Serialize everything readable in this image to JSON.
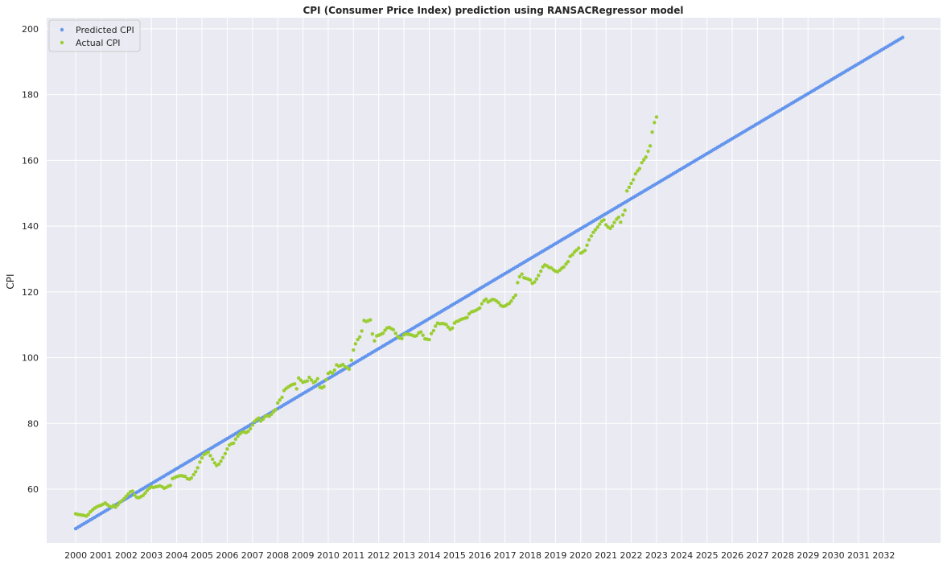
{
  "chart_data": {
    "type": "scatter",
    "title": "CPI (Consumer Price Index) prediction using RANSACRegressor model",
    "xlabel": "",
    "ylabel": "CPI",
    "xlim": [
      1998.85,
      2034.25
    ],
    "ylim": [
      43.6,
      203.4
    ],
    "x_ticks": [
      "2000",
      "2001",
      "2002",
      "2003",
      "2004",
      "2005",
      "2006",
      "2007",
      "2008",
      "2009",
      "2010",
      "2011",
      "2012",
      "2013",
      "2014",
      "2015",
      "2016",
      "2017",
      "2018",
      "2019",
      "2020",
      "2021",
      "2022",
      "2023",
      "2024",
      "2025",
      "2026",
      "2027",
      "2028",
      "2029",
      "2030",
      "2031",
      "2032"
    ],
    "y_ticks": [
      60,
      80,
      100,
      120,
      140,
      160,
      180,
      200
    ],
    "grid": true,
    "legend_position": "top-left",
    "background": "#eaeaf2",
    "series": [
      {
        "name": "Predicted CPI",
        "color": "#6495ed",
        "kind": "linear",
        "x_start": 2000.0,
        "x_end": 2032.75,
        "y_start": 48.0,
        "y_end": 197.4,
        "step_months": 1
      },
      {
        "name": "Actual CPI",
        "color": "#9acd32",
        "kind": "points",
        "points": [
          [
            2000.0,
            52.5
          ],
          [
            2000.08,
            52.3
          ],
          [
            2000.17,
            52.2
          ],
          [
            2000.25,
            52.1
          ],
          [
            2000.33,
            52.0
          ],
          [
            2000.42,
            51.8
          ],
          [
            2000.5,
            52.3
          ],
          [
            2000.58,
            53.1
          ],
          [
            2000.67,
            53.7
          ],
          [
            2000.75,
            54.2
          ],
          [
            2000.83,
            54.6
          ],
          [
            2000.92,
            54.9
          ],
          [
            2001.0,
            55.1
          ],
          [
            2001.08,
            55.4
          ],
          [
            2001.17,
            55.8
          ],
          [
            2001.25,
            55.3
          ],
          [
            2001.33,
            54.8
          ],
          [
            2001.42,
            54.6
          ],
          [
            2001.5,
            55.1
          ],
          [
            2001.58,
            54.5
          ],
          [
            2001.67,
            55.2
          ],
          [
            2001.75,
            56.0
          ],
          [
            2001.83,
            56.5
          ],
          [
            2001.92,
            57.1
          ],
          [
            2002.0,
            57.8
          ],
          [
            2002.08,
            58.5
          ],
          [
            2002.17,
            59.2
          ],
          [
            2002.25,
            59.4
          ],
          [
            2002.33,
            58.2
          ],
          [
            2002.42,
            57.5
          ],
          [
            2002.5,
            57.4
          ],
          [
            2002.58,
            57.7
          ],
          [
            2002.67,
            58.1
          ],
          [
            2002.75,
            58.8
          ],
          [
            2002.83,
            59.6
          ],
          [
            2002.92,
            60.3
          ],
          [
            2003.0,
            60.7
          ],
          [
            2003.08,
            60.5
          ],
          [
            2003.17,
            60.7
          ],
          [
            2003.25,
            60.8
          ],
          [
            2003.33,
            61.0
          ],
          [
            2003.42,
            60.7
          ],
          [
            2003.5,
            60.3
          ],
          [
            2003.58,
            60.5
          ],
          [
            2003.67,
            60.9
          ],
          [
            2003.75,
            61.1
          ],
          [
            2003.83,
            63.2
          ],
          [
            2003.92,
            63.5
          ],
          [
            2004.0,
            63.8
          ],
          [
            2004.08,
            64.0
          ],
          [
            2004.17,
            64.1
          ],
          [
            2004.25,
            64.0
          ],
          [
            2004.33,
            63.9
          ],
          [
            2004.42,
            63.2
          ],
          [
            2004.5,
            63.0
          ],
          [
            2004.58,
            63.4
          ],
          [
            2004.67,
            64.4
          ],
          [
            2004.75,
            65.3
          ],
          [
            2004.83,
            66.5
          ],
          [
            2004.92,
            68.2
          ],
          [
            2005.0,
            69.5
          ],
          [
            2005.08,
            70.5
          ],
          [
            2005.17,
            70.9
          ],
          [
            2005.25,
            71.3
          ],
          [
            2005.33,
            70.2
          ],
          [
            2005.42,
            69.1
          ],
          [
            2005.5,
            68.0
          ],
          [
            2005.58,
            67.2
          ],
          [
            2005.67,
            67.6
          ],
          [
            2005.75,
            68.5
          ],
          [
            2005.83,
            69.6
          ],
          [
            2005.92,
            70.8
          ],
          [
            2006.0,
            72.2
          ],
          [
            2006.08,
            73.4
          ],
          [
            2006.17,
            73.8
          ],
          [
            2006.25,
            74.0
          ],
          [
            2006.33,
            75.2
          ],
          [
            2006.42,
            76.1
          ],
          [
            2006.5,
            76.8
          ],
          [
            2006.58,
            77.3
          ],
          [
            2006.67,
            77.4
          ],
          [
            2006.75,
            77.2
          ],
          [
            2006.83,
            77.6
          ],
          [
            2006.92,
            78.4
          ],
          [
            2007.0,
            79.5
          ],
          [
            2007.08,
            80.6
          ],
          [
            2007.17,
            81.2
          ],
          [
            2007.25,
            81.6
          ],
          [
            2007.33,
            80.7
          ],
          [
            2007.42,
            81.3
          ],
          [
            2007.5,
            82.1
          ],
          [
            2007.58,
            82.3
          ],
          [
            2007.67,
            82.2
          ],
          [
            2007.75,
            82.8
          ],
          [
            2007.83,
            83.5
          ],
          [
            2007.92,
            84.2
          ],
          [
            2008.0,
            86.2
          ],
          [
            2008.08,
            87.1
          ],
          [
            2008.17,
            87.9
          ],
          [
            2008.25,
            90.0
          ],
          [
            2008.33,
            90.6
          ],
          [
            2008.42,
            91.1
          ],
          [
            2008.5,
            91.5
          ],
          [
            2008.58,
            91.8
          ],
          [
            2008.67,
            92.0
          ],
          [
            2008.75,
            90.5
          ],
          [
            2008.83,
            93.8
          ],
          [
            2008.92,
            93.1
          ],
          [
            2009.0,
            92.5
          ],
          [
            2009.08,
            92.7
          ],
          [
            2009.17,
            92.9
          ],
          [
            2009.25,
            94.0
          ],
          [
            2009.33,
            93.2
          ],
          [
            2009.42,
            92.4
          ],
          [
            2009.5,
            92.8
          ],
          [
            2009.58,
            93.6
          ],
          [
            2009.67,
            91.0
          ],
          [
            2009.75,
            90.8
          ],
          [
            2009.83,
            91.2
          ],
          [
            2009.92,
            93.3
          ],
          [
            2010.0,
            95.2
          ],
          [
            2010.08,
            95.6
          ],
          [
            2010.17,
            95.3
          ],
          [
            2010.25,
            96.2
          ],
          [
            2010.33,
            97.8
          ],
          [
            2010.42,
            97.4
          ],
          [
            2010.5,
            97.6
          ],
          [
            2010.58,
            97.9
          ],
          [
            2010.67,
            97.2
          ],
          [
            2010.75,
            97.0
          ],
          [
            2010.83,
            96.5
          ],
          [
            2010.92,
            99.2
          ],
          [
            2011.0,
            102.3
          ],
          [
            2011.08,
            104.2
          ],
          [
            2011.17,
            105.5
          ],
          [
            2011.25,
            106.3
          ],
          [
            2011.33,
            108.1
          ],
          [
            2011.42,
            111.3
          ],
          [
            2011.5,
            111.0
          ],
          [
            2011.58,
            111.2
          ],
          [
            2011.67,
            111.5
          ],
          [
            2011.75,
            107.2
          ],
          [
            2011.83,
            105.1
          ],
          [
            2011.92,
            106.6
          ],
          [
            2012.0,
            106.8
          ],
          [
            2012.08,
            107.1
          ],
          [
            2012.17,
            107.4
          ],
          [
            2012.25,
            108.3
          ],
          [
            2012.33,
            109.0
          ],
          [
            2012.42,
            109.2
          ],
          [
            2012.5,
            108.8
          ],
          [
            2012.58,
            108.5
          ],
          [
            2012.67,
            107.4
          ],
          [
            2012.75,
            106.4
          ],
          [
            2012.83,
            106.0
          ],
          [
            2012.92,
            105.8
          ],
          [
            2013.0,
            106.9
          ],
          [
            2013.08,
            107.2
          ],
          [
            2013.17,
            107.1
          ],
          [
            2013.25,
            107.0
          ],
          [
            2013.33,
            106.8
          ],
          [
            2013.42,
            106.5
          ],
          [
            2013.5,
            106.7
          ],
          [
            2013.58,
            107.5
          ],
          [
            2013.67,
            107.8
          ],
          [
            2013.75,
            106.8
          ],
          [
            2013.83,
            105.7
          ],
          [
            2013.92,
            105.6
          ],
          [
            2014.0,
            105.5
          ],
          [
            2014.08,
            107.3
          ],
          [
            2014.17,
            108.2
          ],
          [
            2014.25,
            109.6
          ],
          [
            2014.33,
            110.5
          ],
          [
            2014.42,
            110.3
          ],
          [
            2014.5,
            110.4
          ],
          [
            2014.58,
            110.3
          ],
          [
            2014.67,
            110.1
          ],
          [
            2014.75,
            109.3
          ],
          [
            2014.83,
            108.6
          ],
          [
            2014.92,
            109.0
          ],
          [
            2015.0,
            110.5
          ],
          [
            2015.08,
            111.0
          ],
          [
            2015.17,
            111.2
          ],
          [
            2015.25,
            111.6
          ],
          [
            2015.33,
            111.8
          ],
          [
            2015.42,
            112.0
          ],
          [
            2015.5,
            112.2
          ],
          [
            2015.58,
            113.3
          ],
          [
            2015.67,
            113.9
          ],
          [
            2015.75,
            114.1
          ],
          [
            2015.83,
            114.3
          ],
          [
            2015.92,
            114.7
          ],
          [
            2016.0,
            115.1
          ],
          [
            2016.08,
            116.4
          ],
          [
            2016.17,
            117.3
          ],
          [
            2016.25,
            117.8
          ],
          [
            2016.33,
            116.9
          ],
          [
            2016.42,
            117.3
          ],
          [
            2016.5,
            117.7
          ],
          [
            2016.58,
            117.6
          ],
          [
            2016.67,
            117.2
          ],
          [
            2016.75,
            116.7
          ],
          [
            2016.83,
            115.9
          ],
          [
            2016.92,
            115.6
          ],
          [
            2017.0,
            115.7
          ],
          [
            2017.08,
            116.1
          ],
          [
            2017.17,
            116.5
          ],
          [
            2017.25,
            117.2
          ],
          [
            2017.33,
            118.2
          ],
          [
            2017.42,
            119.0
          ],
          [
            2017.5,
            122.8
          ],
          [
            2017.58,
            124.6
          ],
          [
            2017.67,
            125.4
          ],
          [
            2017.75,
            124.3
          ],
          [
            2017.83,
            124.1
          ],
          [
            2017.92,
            123.9
          ],
          [
            2018.0,
            123.6
          ],
          [
            2018.08,
            122.6
          ],
          [
            2018.17,
            123.0
          ],
          [
            2018.25,
            123.9
          ],
          [
            2018.33,
            125.0
          ],
          [
            2018.42,
            126.3
          ],
          [
            2018.5,
            127.6
          ],
          [
            2018.58,
            128.2
          ],
          [
            2018.67,
            127.9
          ],
          [
            2018.75,
            127.4
          ],
          [
            2018.83,
            127.3
          ],
          [
            2018.92,
            126.7
          ],
          [
            2019.0,
            126.3
          ],
          [
            2019.08,
            126.1
          ],
          [
            2019.17,
            126.6
          ],
          [
            2019.25,
            127.2
          ],
          [
            2019.33,
            127.6
          ],
          [
            2019.42,
            128.5
          ],
          [
            2019.5,
            129.2
          ],
          [
            2019.58,
            130.8
          ],
          [
            2019.67,
            131.3
          ],
          [
            2019.75,
            132.1
          ],
          [
            2019.83,
            132.7
          ],
          [
            2019.92,
            133.3
          ],
          [
            2020.0,
            131.8
          ],
          [
            2020.08,
            132.1
          ],
          [
            2020.17,
            132.6
          ],
          [
            2020.25,
            134.2
          ],
          [
            2020.33,
            135.8
          ],
          [
            2020.42,
            137.0
          ],
          [
            2020.5,
            138.1
          ],
          [
            2020.58,
            138.9
          ],
          [
            2020.67,
            139.7
          ],
          [
            2020.75,
            140.6
          ],
          [
            2020.83,
            141.5
          ],
          [
            2020.92,
            141.9
          ],
          [
            2021.0,
            140.4
          ],
          [
            2021.08,
            139.7
          ],
          [
            2021.17,
            139.3
          ],
          [
            2021.25,
            140.0
          ],
          [
            2021.33,
            141.1
          ],
          [
            2021.42,
            142.1
          ],
          [
            2021.5,
            142.7
          ],
          [
            2021.58,
            141.2
          ],
          [
            2021.67,
            143.4
          ],
          [
            2021.75,
            144.8
          ],
          [
            2021.83,
            150.7
          ],
          [
            2021.92,
            151.8
          ],
          [
            2022.0,
            153.0
          ],
          [
            2022.08,
            154.1
          ],
          [
            2022.17,
            155.9
          ],
          [
            2022.25,
            156.8
          ],
          [
            2022.33,
            157.5
          ],
          [
            2022.42,
            159.3
          ],
          [
            2022.5,
            160.2
          ],
          [
            2022.58,
            161.0
          ],
          [
            2022.67,
            162.8
          ],
          [
            2022.75,
            164.4
          ],
          [
            2022.83,
            168.6
          ],
          [
            2022.92,
            171.5
          ],
          [
            2023.0,
            173.2
          ]
        ]
      }
    ]
  }
}
